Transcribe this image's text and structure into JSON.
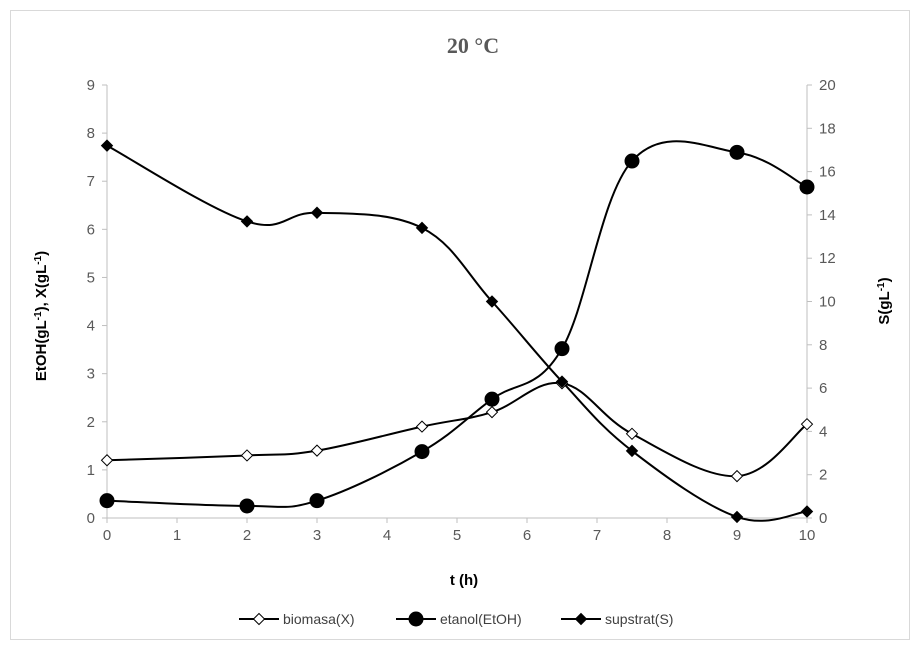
{
  "chart_data": {
    "type": "line",
    "title": "20 °C",
    "xlabel": "t (h)",
    "ylabel_left_parts": [
      "EtOH(gL",
      "-1",
      "), X(gL",
      "-1",
      ")"
    ],
    "ylabel_right_parts": [
      "S(gL",
      "-1",
      ")"
    ],
    "x_ticks": [
      "0",
      "1",
      "2",
      "3",
      "4",
      "5",
      "6",
      "7",
      "8",
      "9",
      "10"
    ],
    "y_left_ticks": [
      "0",
      "1",
      "2",
      "3",
      "4",
      "5",
      "6",
      "7",
      "8",
      "9"
    ],
    "y_right_ticks": [
      "0",
      "2",
      "4",
      "6",
      "8",
      "10",
      "12",
      "14",
      "16",
      "18",
      "20"
    ],
    "xlim": [
      0,
      10
    ],
    "ylim_left": [
      0,
      9
    ],
    "ylim_right": [
      0,
      20
    ],
    "grid": false,
    "legend_position": "bottom",
    "series": [
      {
        "name": "biomasa(X)",
        "axis": "left",
        "marker": "diamond-open",
        "color": "#000000",
        "x": [
          0,
          2,
          3,
          4.5,
          5.5,
          6.5,
          7.5,
          9,
          10
        ],
        "y": [
          1.2,
          1.3,
          1.4,
          1.9,
          2.2,
          2.8,
          1.75,
          0.87,
          1.95
        ]
      },
      {
        "name": "etanol(EtOH)",
        "axis": "left",
        "marker": "circle-filled",
        "color": "#000000",
        "x": [
          0,
          2,
          3,
          4.5,
          5.5,
          6.5,
          7.5,
          9,
          10
        ],
        "y": [
          0.36,
          0.25,
          0.36,
          1.38,
          2.47,
          3.52,
          7.42,
          7.6,
          6.88
        ]
      },
      {
        "name": "supstrat(S)",
        "axis": "right",
        "marker": "diamond-filled",
        "color": "#000000",
        "x": [
          0,
          2,
          3,
          4.5,
          5.5,
          6.5,
          7.5,
          9,
          10
        ],
        "y": [
          17.2,
          13.7,
          14.1,
          13.4,
          10.0,
          6.3,
          3.1,
          0.05,
          0.3
        ]
      }
    ]
  }
}
